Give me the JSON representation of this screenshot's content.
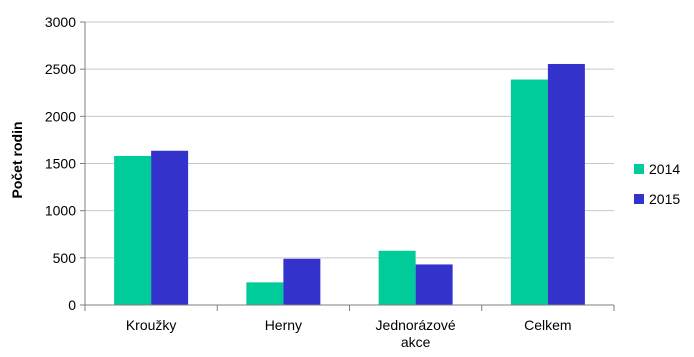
{
  "chart_data": {
    "type": "bar",
    "title": "",
    "xlabel": "",
    "ylabel": "Počet rodin",
    "categories": [
      "Kroužky",
      "Herny",
      "Jednorázové akce",
      "Celkem"
    ],
    "category_lines": [
      [
        "Kroužky"
      ],
      [
        "Herny"
      ],
      [
        "Jednorázové",
        "akce"
      ],
      [
        "Celkem"
      ]
    ],
    "series": [
      {
        "name": "2014",
        "values": [
          1580,
          240,
          575,
          2390
        ],
        "color": "#00cc99"
      },
      {
        "name": "2015",
        "values": [
          1635,
          490,
          430,
          2555
        ],
        "color": "#3333cc"
      }
    ],
    "ylim": [
      0,
      3000
    ],
    "yticks": [
      "0",
      "500",
      "1000",
      "1500",
      "2000",
      "2500",
      "3000"
    ],
    "grid": true,
    "legend_position": "right",
    "gridline_color": "#c8c8c8",
    "axis_color": "#7f7f7f"
  }
}
